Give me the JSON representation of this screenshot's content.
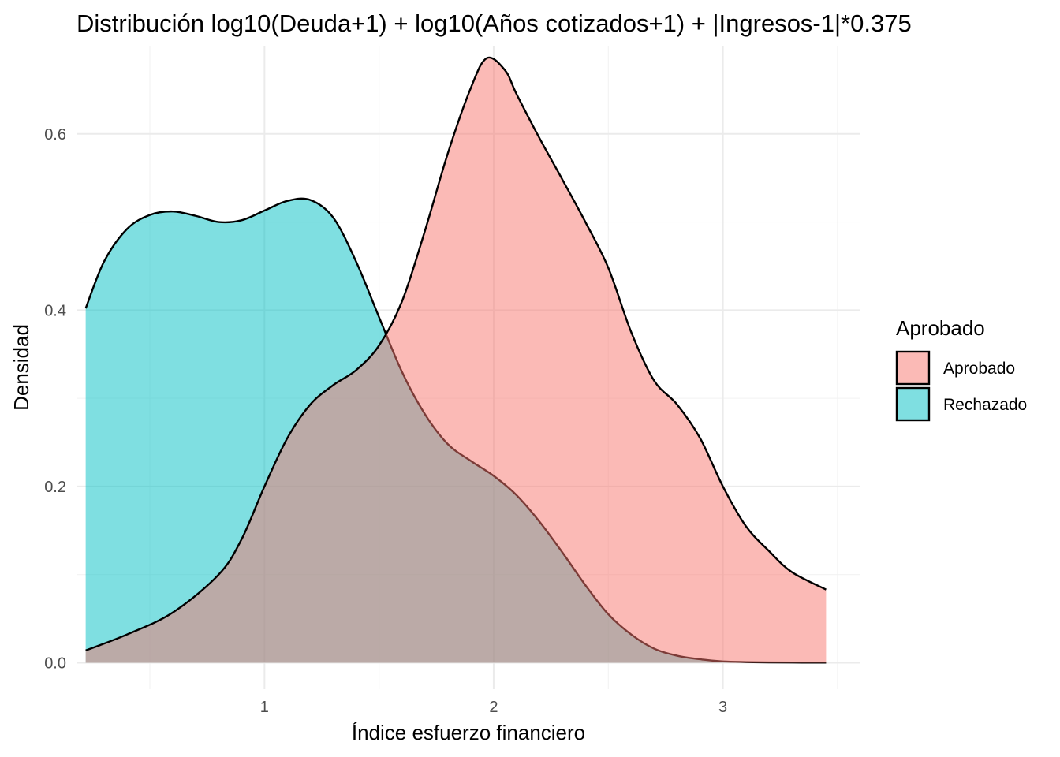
{
  "chart_data": {
    "type": "area",
    "title": "Distribución log10(Deuda+1) + log10(Años cotizados+1) + |Ingresos-1|*0.375",
    "xlabel": "Índice esfuerzo financiero",
    "ylabel": "Densidad",
    "xlim": [
      0.18,
      3.6
    ],
    "ylim": [
      -0.03,
      0.7
    ],
    "x_ticks": [
      1,
      2,
      3
    ],
    "x_tick_labels": [
      "1",
      "2",
      "3"
    ],
    "y_ticks": [
      0.0,
      0.2,
      0.4,
      0.6
    ],
    "y_tick_labels": [
      "0.0",
      "0.2",
      "0.4",
      "0.6"
    ],
    "grid": true,
    "legend": {
      "title": "Aprobado",
      "position": "right"
    },
    "series": [
      {
        "name": "Rechazado",
        "color": "#00BFC4",
        "points": [
          [
            0.22,
            0.402
          ],
          [
            0.3,
            0.455
          ],
          [
            0.4,
            0.492
          ],
          [
            0.5,
            0.508
          ],
          [
            0.6,
            0.512
          ],
          [
            0.7,
            0.507
          ],
          [
            0.8,
            0.5
          ],
          [
            0.9,
            0.502
          ],
          [
            1.0,
            0.513
          ],
          [
            1.1,
            0.524
          ],
          [
            1.2,
            0.525
          ],
          [
            1.3,
            0.505
          ],
          [
            1.4,
            0.455
          ],
          [
            1.5,
            0.392
          ],
          [
            1.6,
            0.33
          ],
          [
            1.7,
            0.282
          ],
          [
            1.8,
            0.248
          ],
          [
            1.9,
            0.229
          ],
          [
            2.0,
            0.212
          ],
          [
            2.1,
            0.19
          ],
          [
            2.2,
            0.16
          ],
          [
            2.3,
            0.125
          ],
          [
            2.4,
            0.088
          ],
          [
            2.5,
            0.055
          ],
          [
            2.6,
            0.032
          ],
          [
            2.7,
            0.016
          ],
          [
            2.8,
            0.008
          ],
          [
            2.9,
            0.004
          ],
          [
            3.0,
            0.0015
          ],
          [
            3.2,
            0.0004
          ],
          [
            3.45,
            0.0001
          ]
        ]
      },
      {
        "name": "Aprobado",
        "color": "#F8766D",
        "points": [
          [
            0.22,
            0.014
          ],
          [
            0.4,
            0.032
          ],
          [
            0.6,
            0.057
          ],
          [
            0.8,
            0.1
          ],
          [
            0.9,
            0.14
          ],
          [
            1.0,
            0.2
          ],
          [
            1.1,
            0.255
          ],
          [
            1.2,
            0.293
          ],
          [
            1.3,
            0.315
          ],
          [
            1.4,
            0.332
          ],
          [
            1.5,
            0.36
          ],
          [
            1.6,
            0.41
          ],
          [
            1.7,
            0.49
          ],
          [
            1.8,
            0.578
          ],
          [
            1.9,
            0.652
          ],
          [
            1.97,
            0.686
          ],
          [
            2.05,
            0.672
          ],
          [
            2.1,
            0.645
          ],
          [
            2.2,
            0.595
          ],
          [
            2.3,
            0.548
          ],
          [
            2.4,
            0.5
          ],
          [
            2.5,
            0.448
          ],
          [
            2.6,
            0.375
          ],
          [
            2.7,
            0.32
          ],
          [
            2.8,
            0.293
          ],
          [
            2.9,
            0.255
          ],
          [
            3.0,
            0.2
          ],
          [
            3.1,
            0.155
          ],
          [
            3.2,
            0.127
          ],
          [
            3.3,
            0.103
          ],
          [
            3.45,
            0.083
          ]
        ]
      }
    ]
  }
}
